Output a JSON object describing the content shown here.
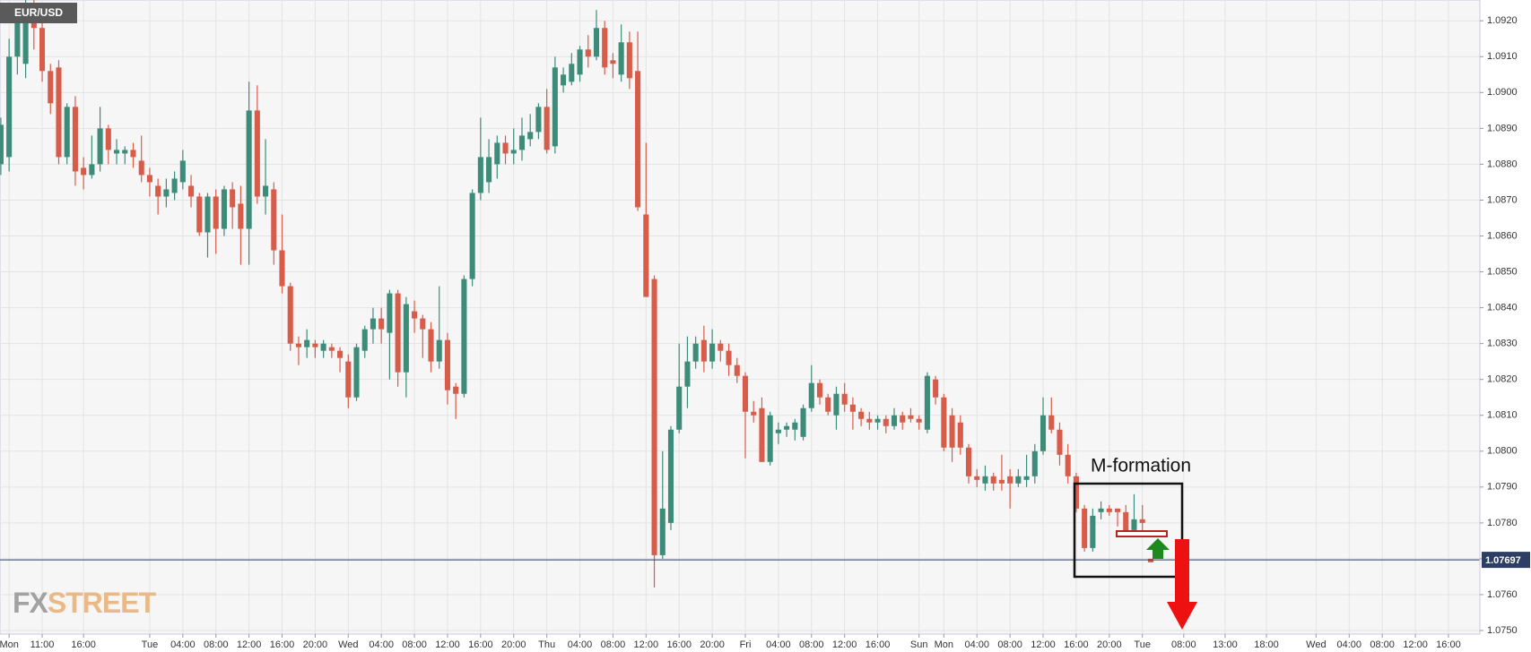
{
  "chart_data": {
    "type": "candlestick",
    "title": "EUR/USD",
    "annotation": "M-formation",
    "watermark": {
      "prefix": "FX",
      "suffix": "STREET"
    },
    "up_color": "#3d8c7a",
    "down_color": "#d85c4a",
    "last_price": 1.07697,
    "last_price_color": "#2c3e63",
    "grid": true,
    "xlim": [
      -0.1,
      178.8
    ],
    "xticks": [
      {
        "value": 1,
        "label": "Mon"
      },
      {
        "value": 5,
        "label": "11:00"
      },
      {
        "value": 10,
        "label": "16:00"
      },
      {
        "value": 18,
        "label": "Tue"
      },
      {
        "value": 22,
        "label": "04:00"
      },
      {
        "value": 26,
        "label": "08:00"
      },
      {
        "value": 30,
        "label": "12:00"
      },
      {
        "value": 34,
        "label": "16:00"
      },
      {
        "value": 38,
        "label": "20:00"
      },
      {
        "value": 42,
        "label": "Wed"
      },
      {
        "value": 46,
        "label": "04:00"
      },
      {
        "value": 50,
        "label": "08:00"
      },
      {
        "value": 54,
        "label": "12:00"
      },
      {
        "value": 58,
        "label": "16:00"
      },
      {
        "value": 62,
        "label": "20:00"
      },
      {
        "value": 66,
        "label": "Thu"
      },
      {
        "value": 70,
        "label": "04:00"
      },
      {
        "value": 74,
        "label": "08:00"
      },
      {
        "value": 78,
        "label": "12:00"
      },
      {
        "value": 82,
        "label": "16:00"
      },
      {
        "value": 86,
        "label": "20:00"
      },
      {
        "value": 90,
        "label": "Fri"
      },
      {
        "value": 94,
        "label": "04:00"
      },
      {
        "value": 98,
        "label": "08:00"
      },
      {
        "value": 102,
        "label": "12:00"
      },
      {
        "value": 106,
        "label": "16:00"
      },
      {
        "value": 111,
        "label": "Sun"
      },
      {
        "value": 114,
        "label": "Mon"
      },
      {
        "value": 118,
        "label": "04:00"
      },
      {
        "value": 122,
        "label": "08:00"
      },
      {
        "value": 126,
        "label": "12:00"
      },
      {
        "value": 130,
        "label": "16:00"
      },
      {
        "value": 134,
        "label": "20:00"
      },
      {
        "value": 138,
        "label": "Tue"
      },
      {
        "value": 143,
        "label": "08:00"
      },
      {
        "value": 148,
        "label": "13:00"
      },
      {
        "value": 153,
        "label": "18:00"
      },
      {
        "value": 159,
        "label": "Wed"
      },
      {
        "value": 163,
        "label": "04:00"
      },
      {
        "value": 167,
        "label": "08:00"
      },
      {
        "value": 171,
        "label": "12:00"
      },
      {
        "value": 175,
        "label": "16:00"
      }
    ],
    "ylim": [
      1.0749,
      1.09258
    ],
    "yticks": [
      {
        "value": 1.075,
        "label": "1.0750"
      },
      {
        "value": 1.076,
        "label": "1.0760"
      },
      {
        "value": 1.077,
        "label": "1.0770"
      },
      {
        "value": 1.078,
        "label": "1.0780"
      },
      {
        "value": 1.079,
        "label": "1.0790"
      },
      {
        "value": 1.08,
        "label": "1.0800"
      },
      {
        "value": 1.081,
        "label": "1.0810"
      },
      {
        "value": 1.082,
        "label": "1.0820"
      },
      {
        "value": 1.083,
        "label": "1.0830"
      },
      {
        "value": 1.084,
        "label": "1.0840"
      },
      {
        "value": 1.085,
        "label": "1.0850"
      },
      {
        "value": 1.086,
        "label": "1.0860"
      },
      {
        "value": 1.087,
        "label": "1.0870"
      },
      {
        "value": 1.088,
        "label": "1.0880"
      },
      {
        "value": 1.089,
        "label": "1.0890"
      },
      {
        "value": 1.09,
        "label": "1.0900"
      },
      {
        "value": 1.091,
        "label": "1.0910"
      },
      {
        "value": 1.092,
        "label": "1.0920"
      }
    ],
    "open": [
      1.088,
      1.0882,
      1.091,
      1.0908,
      1.0925,
      1.0918,
      1.0906,
      1.0907,
      1.0882,
      1.0896,
      1.0879,
      1.0877,
      1.088,
      1.089,
      1.0883,
      1.0883,
      1.0884,
      1.0881,
      1.0877,
      1.0874,
      1.0871,
      1.0872,
      1.0875,
      1.0874,
      1.0871,
      1.0861,
      1.0871,
      1.0862,
      1.0873,
      1.0869,
      1.0862,
      1.0895,
      1.0871,
      1.0873,
      1.0856,
      1.0846,
      1.083,
      1.0829,
      1.083,
      1.0828,
      1.0829,
      1.0828,
      1.0825,
      1.0815,
      1.0828,
      1.0834,
      1.0837,
      1.0833,
      1.0844,
      1.0822,
      1.0839,
      1.0837,
      1.0834,
      1.0825,
      1.0831,
      1.0818,
      1.0816,
      1.0848,
      1.0872,
      1.0875,
      1.088,
      1.0886,
      1.0883,
      1.0884,
      1.0887,
      1.0889,
      1.0896,
      1.0885,
      1.0902,
      1.0903,
      1.0905,
      1.0912,
      1.091,
      1.0918,
      1.0909,
      1.0905,
      1.0914,
      1.0906,
      1.0866,
      1.0848,
      1.0771,
      1.078,
      1.0806,
      1.0818,
      1.0825,
      1.0831,
      1.0825,
      1.083,
      1.0828,
      1.0824,
      1.0821,
      1.0811,
      1.0812,
      1.0797,
      1.0805,
      1.0806,
      1.0806,
      1.0804,
      1.0812,
      1.0819,
      1.0815,
      1.081,
      1.0816,
      1.0813,
      1.0811,
      1.0809,
      1.0808,
      1.0809,
      1.0807,
      1.081,
      1.081,
      1.0809,
      1.0806,
      1.082,
      1.0815,
      1.081,
      1.0808,
      1.0801,
      1.0793,
      1.0791,
      1.0793,
      1.0792,
      1.0793,
      1.0791,
      1.0792,
      1.0793,
      1.08,
      1.081,
      1.0806,
      1.0799,
      1.0793,
      1.0784,
      1.0773,
      1.0783,
      1.0784,
      1.0784,
      1.0783,
      1.0778,
      1.0781,
      1.077
    ],
    "high": [
      1.0893,
      1.0915,
      1.0925,
      1.0926,
      1.0926,
      1.092,
      1.0908,
      1.0909,
      1.0897,
      1.0899,
      1.0882,
      1.0888,
      1.0896,
      1.0891,
      1.0887,
      1.0885,
      1.0886,
      1.0888,
      1.0879,
      1.0876,
      1.0876,
      1.0878,
      1.0884,
      1.0877,
      1.0872,
      1.0872,
      1.0873,
      1.0874,
      1.0875,
      1.0874,
      1.0903,
      1.0902,
      1.0887,
      1.0875,
      1.0866,
      1.0847,
      1.0832,
      1.0834,
      1.0831,
      1.0831,
      1.083,
      1.0829,
      1.0827,
      1.083,
      1.0835,
      1.084,
      1.084,
      1.0845,
      1.0845,
      1.0843,
      1.0842,
      1.0838,
      1.0836,
      1.0846,
      1.0833,
      1.0819,
      1.0849,
      1.0873,
      1.0893,
      1.0887,
      1.0888,
      1.0888,
      1.089,
      1.0893,
      1.0894,
      1.0897,
      1.0901,
      1.091,
      1.0907,
      1.0911,
      1.0913,
      1.0916,
      1.0923,
      1.092,
      1.0911,
      1.0919,
      1.0917,
      1.0917,
      1.0886,
      1.0849,
      1.08,
      1.0807,
      1.083,
      1.0832,
      1.0832,
      1.0835,
      1.0834,
      1.0831,
      1.083,
      1.0826,
      1.0822,
      1.0814,
      1.0815,
      1.0811,
      1.0808,
      1.0808,
      1.0809,
      1.0813,
      1.0824,
      1.082,
      1.0816,
      1.0818,
      1.0819,
      1.0815,
      1.0812,
      1.0811,
      1.081,
      1.081,
      1.0812,
      1.0811,
      1.0812,
      1.081,
      1.0822,
      1.0821,
      1.0816,
      1.0812,
      1.081,
      1.0802,
      1.0795,
      1.0796,
      1.0794,
      1.0799,
      1.0795,
      1.0795,
      1.0799,
      1.0802,
      1.0815,
      1.0815,
      1.0808,
      1.0802,
      1.0794,
      1.0785,
      1.0784,
      1.0786,
      1.0785,
      1.0784,
      1.0785,
      1.0788,
      1.0785,
      1.077
    ],
    "low": [
      1.0877,
      1.0878,
      1.0905,
      1.0904,
      1.0912,
      1.0903,
      1.0894,
      1.088,
      1.088,
      1.0874,
      1.0873,
      1.0876,
      1.0878,
      1.088,
      1.088,
      1.088,
      1.0879,
      1.0875,
      1.0871,
      1.0866,
      1.0868,
      1.087,
      1.0873,
      1.0868,
      1.086,
      1.0854,
      1.0855,
      1.086,
      1.0862,
      1.0852,
      1.0852,
      1.0869,
      1.0866,
      1.0852,
      1.0844,
      1.0828,
      1.0824,
      1.0826,
      1.0826,
      1.0826,
      1.0826,
      1.0822,
      1.0812,
      1.0814,
      1.0826,
      1.083,
      1.083,
      1.082,
      1.0818,
      1.0815,
      1.0833,
      1.0826,
      1.0822,
      1.0823,
      1.0813,
      1.0809,
      1.0815,
      1.0846,
      1.087,
      1.0872,
      1.0876,
      1.088,
      1.088,
      1.0881,
      1.0885,
      1.0887,
      1.0883,
      1.0883,
      1.09,
      1.0902,
      1.0903,
      1.0907,
      1.0909,
      1.0905,
      1.0904,
      1.0903,
      1.0901,
      1.0867,
      1.0843,
      1.0762,
      1.077,
      1.0778,
      1.0805,
      1.0812,
      1.0823,
      1.0822,
      1.0823,
      1.0825,
      1.0821,
      1.0819,
      1.0798,
      1.0808,
      1.0797,
      1.0796,
      1.0802,
      1.0804,
      1.0803,
      1.0803,
      1.0811,
      1.0813,
      1.081,
      1.0806,
      1.0811,
      1.0806,
      1.0807,
      1.0806,
      1.0806,
      1.0805,
      1.0806,
      1.0806,
      1.0808,
      1.0806,
      1.0805,
      1.0813,
      1.08,
      1.0797,
      1.0799,
      1.0791,
      1.079,
      1.0789,
      1.0789,
      1.0789,
      1.0784,
      1.079,
      1.079,
      1.0791,
      1.0799,
      1.0805,
      1.0796,
      1.0791,
      1.0783,
      1.0772,
      1.0772,
      1.0781,
      1.0782,
      1.0779,
      1.0776,
      1.0777,
      1.0777,
      1.0769
    ],
    "close": [
      1.0891,
      1.091,
      1.092,
      1.0925,
      1.0918,
      1.0906,
      1.0897,
      1.0882,
      1.0896,
      1.0878,
      1.0877,
      1.088,
      1.089,
      1.0884,
      1.0884,
      1.0884,
      1.0882,
      1.0877,
      1.0875,
      1.0871,
      1.0873,
      1.0876,
      1.0881,
      1.0871,
      1.0861,
      1.0871,
      1.0862,
      1.0873,
      1.0868,
      1.0862,
      1.0895,
      1.0871,
      1.0874,
      1.0856,
      1.0846,
      1.083,
      1.0829,
      1.0831,
      1.0829,
      1.083,
      1.0828,
      1.0826,
      1.0815,
      1.0829,
      1.0834,
      1.0837,
      1.0834,
      1.0844,
      1.0822,
      1.0841,
      1.0837,
      1.0834,
      1.0825,
      1.0831,
      1.0817,
      1.0816,
      1.0848,
      1.0872,
      1.0882,
      1.0882,
      1.0886,
      1.0883,
      1.0884,
      1.0888,
      1.0889,
      1.0896,
      1.0884,
      1.0907,
      1.0905,
      1.0908,
      1.0912,
      1.091,
      1.0918,
      1.0907,
      1.0908,
      1.0914,
      1.0904,
      1.0868,
      1.0843,
      1.0771,
      1.0784,
      1.0806,
      1.0818,
      1.0825,
      1.083,
      1.0825,
      1.083,
      1.0828,
      1.0824,
      1.0821,
      1.0811,
      1.081,
      1.0797,
      1.081,
      1.0806,
      1.0807,
      1.0808,
      1.0812,
      1.0819,
      1.0815,
      1.0811,
      1.0816,
      1.0813,
      1.0811,
      1.0809,
      1.0808,
      1.0809,
      1.0807,
      1.081,
      1.0808,
      1.0809,
      1.0808,
      1.0821,
      1.0815,
      1.0801,
      1.0801,
      1.0801,
      1.0793,
      1.0792,
      1.0793,
      1.0791,
      1.0791,
      1.0791,
      1.0793,
      1.0793,
      1.08,
      1.081,
      1.0806,
      1.0799,
      1.0793,
      1.0784,
      1.0773,
      1.0782,
      1.0784,
      1.0783,
      1.0783,
      1.0777,
      1.0781,
      1.078,
      1.0769
    ]
  }
}
